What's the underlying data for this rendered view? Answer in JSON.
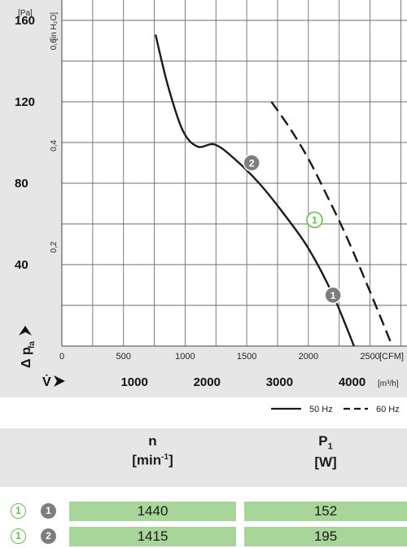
{
  "chart_data": {
    "type": "line",
    "y_primary": {
      "unit": "[Pa]",
      "ticks": [
        "40",
        "80",
        "120",
        "160"
      ],
      "range": [
        0,
        170
      ]
    },
    "y_secondary": {
      "unit": "[in H₂O]",
      "ticks": [
        "0,2",
        "0,4",
        "0,6"
      ]
    },
    "x_cfm": {
      "unit": "[CFM]",
      "ticks": [
        "0",
        "500",
        "1000",
        "1500",
        "2000",
        "2500"
      ],
      "range": [
        0,
        2800
      ]
    },
    "x_m3h": {
      "unit": "[m³/h]",
      "ticks": [
        "1000",
        "2000",
        "3000",
        "4000"
      ]
    },
    "y_axis_label": "Δ p",
    "y_axis_sub": "fa",
    "x_axis_label": "V̇",
    "series": [
      {
        "name": "50 Hz",
        "style": "solid",
        "color": "#1a1a1a",
        "points": [
          [
            760,
            153
          ],
          [
            860,
            128
          ],
          [
            980,
            106
          ],
          [
            1100,
            98
          ],
          [
            1240,
            99
          ],
          [
            1400,
            92
          ],
          [
            1600,
            80
          ],
          [
            1800,
            65
          ],
          [
            2000,
            48
          ],
          [
            2200,
            25
          ],
          [
            2370,
            0
          ]
        ]
      },
      {
        "name": "60 Hz",
        "style": "dashed",
        "color": "#1a1a1a",
        "points": [
          [
            1700,
            120
          ],
          [
            1850,
            107
          ],
          [
            2000,
            92
          ],
          [
            2150,
            74
          ],
          [
            2300,
            55
          ],
          [
            2450,
            34
          ],
          [
            2600,
            12
          ],
          [
            2680,
            0
          ]
        ]
      }
    ],
    "markers": [
      {
        "label": "1",
        "x": 2200,
        "y": 25,
        "style": "gray"
      },
      {
        "label": "2",
        "x": 1540,
        "y": 90,
        "style": "gray"
      },
      {
        "label": "1",
        "x": 2050,
        "y": 62,
        "style": "green"
      }
    ],
    "grid": true,
    "legend_position": "bottom-right"
  },
  "table": {
    "headers": [
      {
        "main": "n",
        "sub": "[min-1]"
      },
      {
        "main": "P1",
        "sub": "[W]"
      }
    ],
    "rows": [
      {
        "op_label": "1",
        "curve_label": "1",
        "n": "1440",
        "p1": "152"
      },
      {
        "op_label": "1",
        "curve_label": "2",
        "n": "1415",
        "p1": "195"
      }
    ]
  }
}
